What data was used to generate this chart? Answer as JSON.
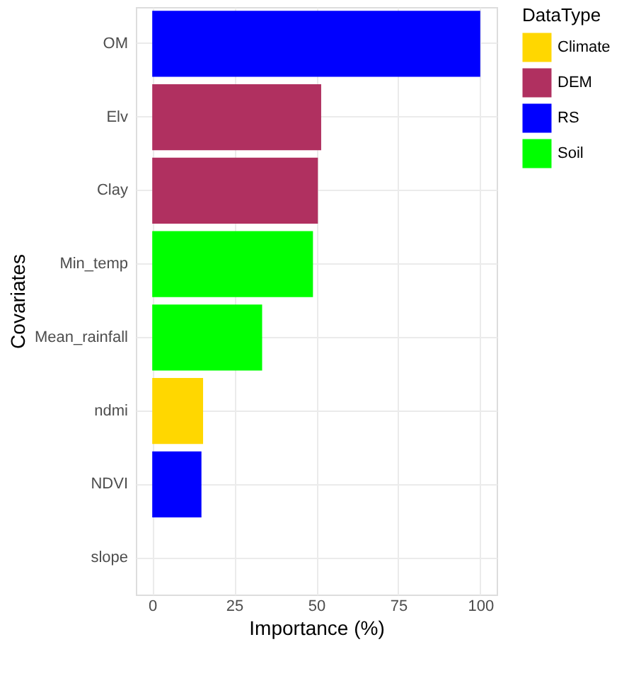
{
  "chart_data": {
    "type": "bar",
    "orientation": "horizontal",
    "xlabel": "Importance (%)",
    "ylabel": "Covariates",
    "legend_title": "DataType",
    "categories": [
      "OM",
      "Elv",
      "Clay",
      "Min_temp",
      "Mean_rainfall",
      "ndmi",
      "NDVI",
      "slope"
    ],
    "series": [
      {
        "name": "Climate",
        "color": "#ffd700",
        "values": [
          null,
          null,
          null,
          null,
          null,
          15.5,
          null,
          null
        ]
      },
      {
        "name": "DEM",
        "color": "#b03060",
        "values": [
          null,
          51.5,
          50.5,
          null,
          null,
          null,
          null,
          0
        ]
      },
      {
        "name": "RS",
        "color": "#0000ff",
        "values": [
          100,
          null,
          null,
          null,
          null,
          null,
          15,
          null
        ]
      },
      {
        "name": "Soil",
        "color": "#00ff00",
        "values": [
          null,
          null,
          null,
          49,
          33.5,
          null,
          null,
          null
        ]
      }
    ],
    "xlim": [
      -5,
      105
    ],
    "xticks": [
      0,
      25,
      50,
      75,
      100
    ],
    "grid": true,
    "legend": "right"
  }
}
